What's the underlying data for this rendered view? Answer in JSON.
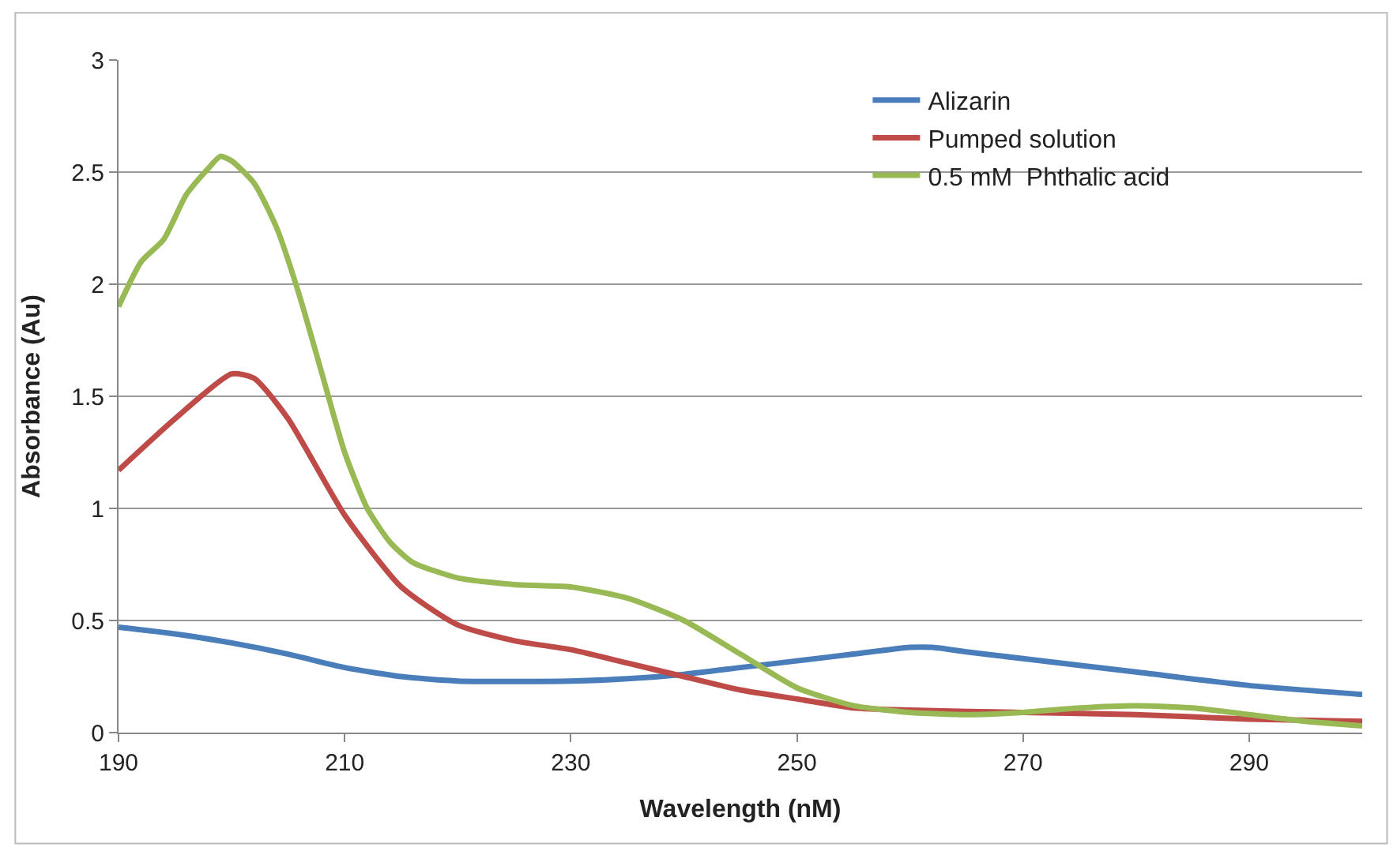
{
  "chart_data": {
    "type": "line",
    "xlabel": "Wavelength (nM)",
    "ylabel": "Absorbance (Au)",
    "xlim": [
      190,
      300
    ],
    "xticks": [
      190,
      210,
      230,
      250,
      270,
      290
    ],
    "ylim": [
      0,
      3
    ],
    "yticks": [
      0,
      0.5,
      1,
      1.5,
      2,
      2.5,
      3
    ],
    "grid": "y",
    "legend": "top right",
    "marker": "none",
    "line_style": "solid",
    "series": [
      {
        "name": "Alizarin",
        "color": "#4a7ebb",
        "x": [
          190,
          195,
          200,
          205,
          210,
          215,
          220,
          230,
          235,
          240,
          245,
          250,
          255,
          260,
          262,
          265,
          270,
          280,
          290,
          300
        ],
        "values": [
          0.47,
          0.44,
          0.4,
          0.35,
          0.29,
          0.25,
          0.23,
          0.23,
          0.24,
          0.26,
          0.29,
          0.32,
          0.35,
          0.38,
          0.38,
          0.36,
          0.33,
          0.27,
          0.21,
          0.17
        ]
      },
      {
        "name": "Pumped solution",
        "color": "#be4b48",
        "x": [
          190,
          195,
          200,
          202,
          205,
          210,
          215,
          220,
          225,
          230,
          235,
          240,
          245,
          250,
          255,
          260,
          270,
          280,
          290,
          300
        ],
        "values": [
          1.17,
          1.4,
          1.6,
          1.58,
          1.4,
          0.97,
          0.65,
          0.48,
          0.41,
          0.37,
          0.31,
          0.25,
          0.19,
          0.15,
          0.11,
          0.1,
          0.09,
          0.08,
          0.06,
          0.05
        ]
      },
      {
        "name": "0.5 mM  Phthalic acid",
        "color": "#98b954",
        "x": [
          190,
          192,
          194,
          196,
          198,
          199,
          200,
          202,
          204,
          206,
          208,
          210,
          212,
          214,
          216,
          220,
          225,
          230,
          235,
          240,
          245,
          250,
          255,
          260,
          265,
          270,
          275,
          280,
          285,
          290,
          295,
          300
        ],
        "values": [
          1.9,
          2.1,
          2.2,
          2.4,
          2.52,
          2.57,
          2.55,
          2.45,
          2.25,
          1.95,
          1.6,
          1.25,
          1.0,
          0.85,
          0.76,
          0.69,
          0.66,
          0.65,
          0.6,
          0.5,
          0.35,
          0.2,
          0.12,
          0.09,
          0.08,
          0.09,
          0.11,
          0.12,
          0.11,
          0.08,
          0.05,
          0.03
        ]
      }
    ]
  }
}
